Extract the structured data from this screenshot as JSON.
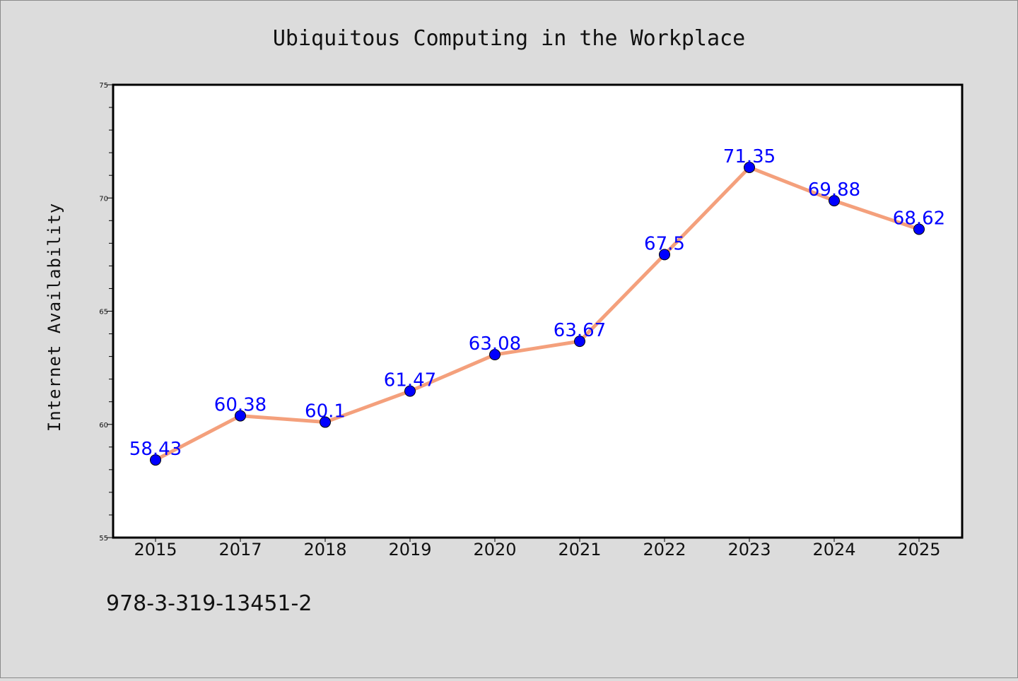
{
  "chart_data": {
    "type": "line",
    "title": "Ubiquitous Computing in the Workplace",
    "xlabel": "",
    "ylabel": "Internet Availability",
    "categories": [
      "2015",
      "2017",
      "2018",
      "2019",
      "2020",
      "2021",
      "2022",
      "2023",
      "2024",
      "2025"
    ],
    "series": [
      {
        "values": [
          58.43,
          60.38,
          60.1,
          61.47,
          63.08,
          63.67,
          67.5,
          71.35,
          69.88,
          68.62
        ]
      }
    ],
    "data_labels": [
      "58.43",
      "60.38",
      "60.1",
      "61.47",
      "63.08",
      "63.67",
      "67.5",
      "71.35",
      "69.88",
      "68.62"
    ],
    "ylim": [
      55,
      75
    ],
    "yticks": [
      55,
      60,
      65,
      70,
      75
    ],
    "grid": false,
    "legend": "none",
    "colors": {
      "line": "#f4a07c",
      "marker": "#0000ff",
      "data_label": "#0000ff",
      "background": "#dcdcdc",
      "plot_background": "#ffffff"
    }
  },
  "footer": {
    "text": "978-3-319-13451-2"
  }
}
